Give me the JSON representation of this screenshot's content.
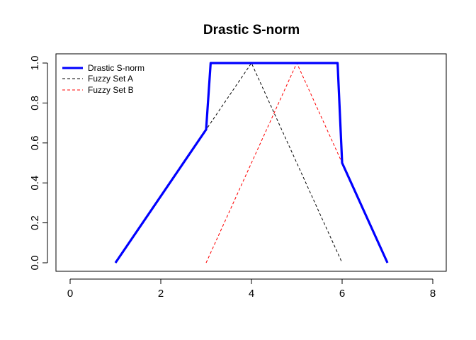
{
  "chart_data": {
    "type": "line",
    "title": "Drastic S-norm",
    "xlabel": "",
    "ylabel": "",
    "xlim": [
      0,
      8
    ],
    "ylim": [
      0,
      1
    ],
    "x_ticks": [
      0,
      2,
      4,
      6,
      8
    ],
    "y_ticks": [
      0.0,
      0.2,
      0.4,
      0.6,
      0.8,
      1.0
    ],
    "x_tick_labels": [
      "0",
      "2",
      "4",
      "6",
      "8"
    ],
    "y_tick_labels": [
      "0.0",
      "0.2",
      "0.4",
      "0.6",
      "0.8",
      "1.0"
    ],
    "grid": false,
    "legend_position": "top-left",
    "series": [
      {
        "name": "Drastic S-norm",
        "color": "#0000ff",
        "style": "solid",
        "points": [
          [
            1,
            0
          ],
          [
            3,
            0.667
          ],
          [
            3.1,
            1
          ],
          [
            5.9,
            1
          ],
          [
            6,
            0.5
          ],
          [
            7,
            0
          ]
        ]
      },
      {
        "name": "Fuzzy Set A",
        "color": "#000000",
        "style": "dashed",
        "points": [
          [
            1,
            0
          ],
          [
            4,
            1
          ],
          [
            6,
            0
          ]
        ]
      },
      {
        "name": "Fuzzy Set B",
        "color": "#ff0000",
        "style": "dashed",
        "points": [
          [
            3,
            0
          ],
          [
            5,
            1
          ],
          [
            7,
            0
          ]
        ]
      }
    ]
  }
}
